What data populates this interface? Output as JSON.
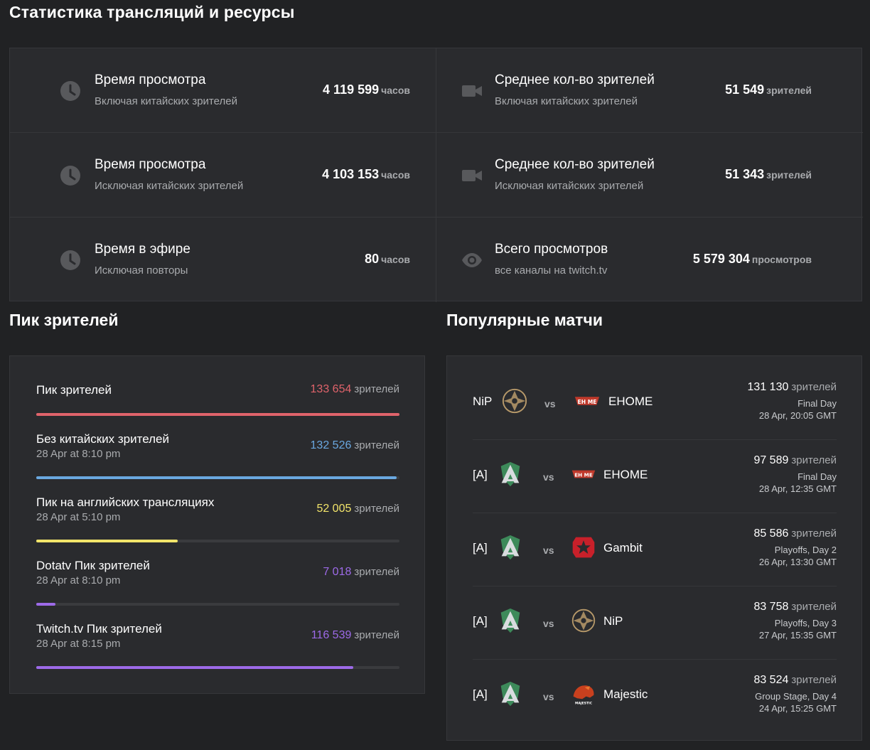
{
  "title": "Статистика трансляций и ресурсы",
  "stats": [
    {
      "icon": "clock-icon",
      "title": "Время просмотра",
      "sub": "Включая китайских зрителей",
      "value": "4 119 599",
      "unit": "часов"
    },
    {
      "icon": "video-camera-icon",
      "title": "Среднее кол-во зрителей",
      "sub": "Включая китайских зрителей",
      "value": "51 549",
      "unit": "зрителей"
    },
    {
      "icon": "clock-icon",
      "title": "Время просмотра",
      "sub": "Исключая китайских зрителей",
      "value": "4 103 153",
      "unit": "часов"
    },
    {
      "icon": "video-camera-icon",
      "title": "Среднее кол-во зрителей",
      "sub": "Исключая китайских зрителей",
      "value": "51 343",
      "unit": "зрителей"
    },
    {
      "icon": "clock-icon",
      "title": "Время в эфире",
      "sub": "Исключая повторы",
      "value": "80",
      "unit": "часов"
    },
    {
      "icon": "eye-icon",
      "title": "Всего просмотров",
      "sub": "все каналы на twitch.tv",
      "value": "5 579 304",
      "unit": "просмотров"
    }
  ],
  "peak": {
    "heading": "Пик зрителей",
    "unit": "зрителей",
    "items": [
      {
        "label": "Пик зрителей",
        "date": "",
        "value": "133 654",
        "color": "#e0636b",
        "fill": 1.0
      },
      {
        "label": "Без китайских зрителей",
        "date": "28 Apr at 8:10 pm",
        "value": "132 526",
        "color": "#6aa8e0",
        "fill": 0.992
      },
      {
        "label": "Пик на английских трансляциях",
        "date": "28 Apr at 5:10 pm",
        "value": "52 005",
        "color": "#f2e46a",
        "fill": 0.389
      },
      {
        "label": "Dotatv Пик зрителей",
        "date": "28 Apr at 8:10 pm",
        "value": "7 018",
        "color": "#9d6ae8",
        "fill": 0.053
      },
      {
        "label": "Twitch.tv Пик зрителей",
        "date": "28 Apr at 8:15 pm",
        "value": "116 539",
        "color": "#9d6ae8",
        "fill": 0.872
      }
    ]
  },
  "matches": {
    "heading": "Популярные матчи",
    "vs": "vs",
    "unit": "зрителей",
    "items": [
      {
        "teamA": "NiP",
        "logoA": "nip-logo-icon",
        "teamB": "EHOME",
        "logoB": "ehome-logo-icon",
        "viewers": "131 130",
        "stage": "Final Day",
        "date": "28 Apr, 20:05 GMT"
      },
      {
        "teamA": "[A]",
        "logoA": "alliance-logo-icon",
        "teamB": "EHOME",
        "logoB": "ehome-logo-icon",
        "viewers": "97 589",
        "stage": "Final Day",
        "date": "28 Apr, 12:35 GMT"
      },
      {
        "teamA": "[A]",
        "logoA": "alliance-logo-icon",
        "teamB": "Gambit",
        "logoB": "gambit-logo-icon",
        "viewers": "85 586",
        "stage": "Playoffs, Day 2",
        "date": "26 Apr, 13:30 GMT"
      },
      {
        "teamA": "[A]",
        "logoA": "alliance-logo-icon",
        "teamB": "NiP",
        "logoB": "nip-logo-icon",
        "viewers": "83 758",
        "stage": "Playoffs, Day 3",
        "date": "27 Apr, 15:35 GMT"
      },
      {
        "teamA": "[A]",
        "logoA": "alliance-logo-icon",
        "teamB": "Majestic",
        "logoB": "majestic-logo-icon",
        "viewers": "83 524",
        "stage": "Group Stage, Day 4",
        "date": "24 Apr, 15:25 GMT"
      }
    ],
    "ehome_logo_text": "EH ME",
    "majestic_logo_text": "MAJESTIC"
  }
}
